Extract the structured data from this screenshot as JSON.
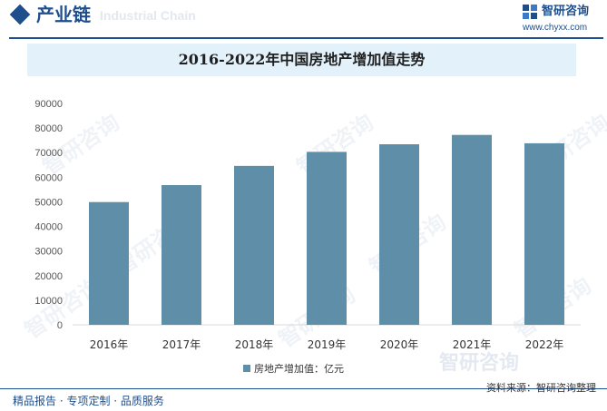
{
  "header": {
    "section_title": "产业链",
    "ghost_text": "Industrial Chain",
    "brand_name": "智研咨询",
    "brand_url": "www.chyxx.com"
  },
  "watermark_text": "智研咨询",
  "footer": {
    "left": "精品报告 · 专项定制 · 品质服务",
    "source": "资料来源：智研咨询整理"
  },
  "colors": {
    "bar": "#5f8fa8",
    "brand": "#1e4e8c",
    "title_band": "#e3f1fb"
  },
  "chart_data": {
    "type": "bar",
    "title": "2016-2022年中国房地产增加值走势",
    "categories": [
      "2016年",
      "2017年",
      "2018年",
      "2019年",
      "2020年",
      "2021年",
      "2022年"
    ],
    "series": [
      {
        "name": "房地产增加值：亿元",
        "values": [
          49900,
          56800,
          64600,
          70300,
          73400,
          77200,
          73800
        ]
      }
    ],
    "ylim": [
      0,
      90000
    ],
    "yticks": [
      "0",
      "10000",
      "20000",
      "30000",
      "40000",
      "50000",
      "60000",
      "70000",
      "80000",
      "90000"
    ],
    "grid": false,
    "legend_position": "bottom"
  }
}
